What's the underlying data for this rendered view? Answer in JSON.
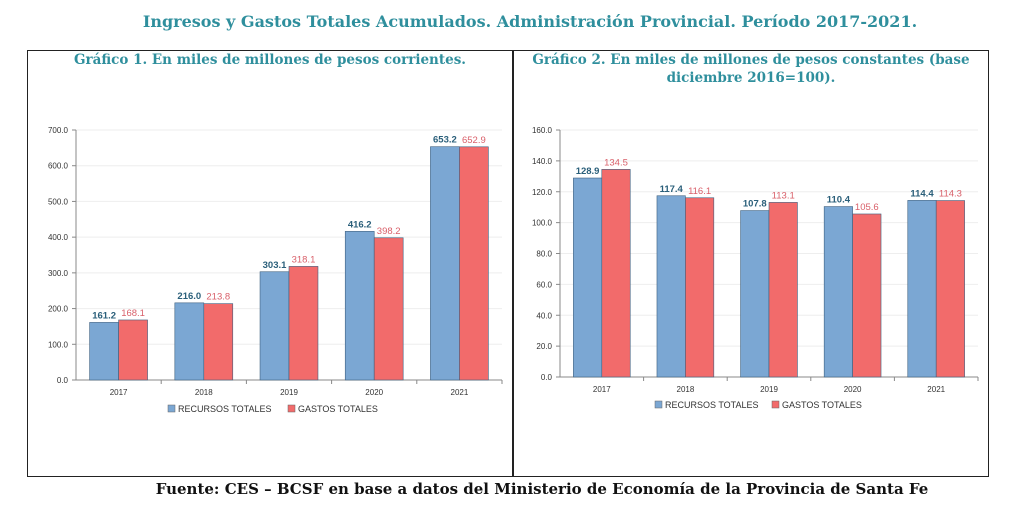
{
  "title": "Ingresos y Gastos Totales Acumulados. Administración Provincial. Período 2017-2021.",
  "source": "Fuente: CES – BCSF en base a datos del Ministerio de Economía de la Provincia de Santa Fe",
  "colors": {
    "recursos": "#7ba7d3",
    "gastos": "#f26b6b",
    "recursos_label": "#2a5f7a",
    "gastos_label": "#d9606a",
    "title": "#2f8f9d"
  },
  "chart_data": [
    {
      "type": "bar",
      "title": "Gráfico 1. En miles de millones de pesos corrientes.",
      "categories": [
        "2017",
        "2018",
        "2019",
        "2020",
        "2021"
      ],
      "series": [
        {
          "name": "RECURSOS TOTALES",
          "values": [
            161.2,
            216.0,
            303.1,
            416.2,
            653.2
          ],
          "labels": [
            "161.2",
            "216.0",
            "303.1",
            "416.2",
            "653.2"
          ]
        },
        {
          "name": "GASTOS TOTALES",
          "values": [
            168.1,
            213.8,
            318.1,
            398.2,
            652.9
          ],
          "labels": [
            "168.1",
            "213.8",
            "318.1",
            "398.2",
            "652.9"
          ]
        }
      ],
      "ylim": [
        0,
        700
      ],
      "yticks": [
        "0.0",
        "100.0",
        "200.0",
        "300.0",
        "400.0",
        "500.0",
        "600.0",
        "700.0"
      ],
      "legend": "bottom",
      "grid": true
    },
    {
      "type": "bar",
      "title": "Gráfico 2. En miles de millones de pesos constantes (base diciembre 2016=100).",
      "categories": [
        "2017",
        "2018",
        "2019",
        "2020",
        "2021"
      ],
      "series": [
        {
          "name": "RECURSOS TOTALES",
          "values": [
            128.9,
            117.4,
            107.8,
            110.4,
            114.4
          ],
          "labels": [
            "128.9",
            "117.4",
            "107.8",
            "110.4",
            "114.4"
          ]
        },
        {
          "name": "GASTOS TOTALES",
          "values": [
            134.5,
            116.1,
            113.1,
            105.6,
            114.3
          ],
          "labels": [
            "134.5",
            "116.1",
            "113.1",
            "105.6",
            "114.3"
          ]
        }
      ],
      "ylim": [
        0,
        160
      ],
      "yticks": [
        "0.0",
        "20.0",
        "40.0",
        "60.0",
        "80.0",
        "100.0",
        "120.0",
        "140.0",
        "160.0"
      ],
      "legend": "bottom",
      "grid": true
    }
  ]
}
